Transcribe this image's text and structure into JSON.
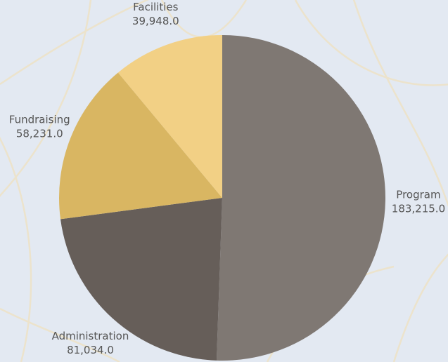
{
  "chart_data": {
    "type": "pie",
    "categories": [
      "Program",
      "Administration",
      "Fundraising",
      "Facilities"
    ],
    "values": [
      183215,
      81034,
      58231,
      39948
    ],
    "value_labels": [
      "183,215.0",
      "81,034.0",
      "58,231.0",
      "39,948.0"
    ],
    "colors": [
      "#7f7873",
      "#665e59",
      "#d9b662",
      "#f2d085"
    ]
  }
}
